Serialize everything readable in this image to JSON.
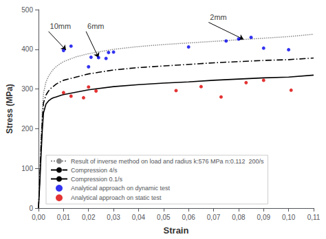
{
  "chart_data": {
    "type": "line",
    "xlabel": "Strain",
    "ylabel": "Stress (MPa)",
    "xlim": [
      0,
      0.11
    ],
    "ylim": [
      0,
      500
    ],
    "xticks": [
      {
        "value": 0.0,
        "label": "0,00"
      },
      {
        "value": 0.01,
        "label": "0,01"
      },
      {
        "value": 0.02,
        "label": "0,02"
      },
      {
        "value": 0.03,
        "label": "0,03"
      },
      {
        "value": 0.04,
        "label": "0,04"
      },
      {
        "value": 0.05,
        "label": "0,05"
      },
      {
        "value": 0.06,
        "label": "0,06"
      },
      {
        "value": 0.07,
        "label": "0,07"
      },
      {
        "value": 0.08,
        "label": "0,08"
      },
      {
        "value": 0.09,
        "label": "0,09"
      },
      {
        "value": 0.1,
        "label": "0,10"
      },
      {
        "value": 0.11,
        "label": "0,11"
      }
    ],
    "yticks": [
      0,
      100,
      200,
      300,
      400,
      500
    ],
    "grid": false,
    "legend": "lower left",
    "series": [
      {
        "name": "Result of inverse method on load and radius k:576 MPa n:0.112  200/s",
        "type": "line",
        "color": "#888888",
        "line_style": "dotted",
        "x": [
          0.0,
          0.0005,
          0.001,
          0.0015,
          0.002,
          0.003,
          0.004,
          0.005,
          0.006,
          0.007,
          0.008,
          0.009,
          0.01,
          0.015,
          0.02,
          0.03,
          0.04,
          0.05,
          0.06,
          0.07,
          0.08,
          0.085,
          0.09,
          0.1,
          0.11
        ],
        "values": [
          0,
          85,
          175,
          245,
          290,
          318,
          332,
          342,
          350,
          356,
          361,
          365,
          369,
          381,
          389,
          400,
          407,
          412,
          416,
          420,
          424,
          426,
          428,
          432,
          438
        ]
      },
      {
        "name": "Compression 4/s",
        "type": "line",
        "color": "#000000",
        "line_style": "dashdot",
        "x": [
          0.0,
          0.0005,
          0.001,
          0.0015,
          0.002,
          0.003,
          0.004,
          0.005,
          0.006,
          0.007,
          0.008,
          0.009,
          0.01,
          0.015,
          0.02,
          0.03,
          0.04,
          0.05,
          0.06,
          0.07,
          0.08,
          0.09,
          0.1,
          0.11
        ],
        "values": [
          0,
          75,
          155,
          220,
          265,
          285,
          295,
          302,
          307,
          312,
          316,
          319,
          322,
          330,
          338,
          348,
          354,
          358,
          362,
          366,
          369,
          372,
          374,
          378
        ]
      },
      {
        "name": "Compression 0.1/s",
        "type": "line",
        "color": "#000000",
        "line_style": "solid",
        "x": [
          0.0,
          0.0005,
          0.001,
          0.0015,
          0.002,
          0.003,
          0.004,
          0.005,
          0.006,
          0.007,
          0.008,
          0.009,
          0.01,
          0.015,
          0.02,
          0.03,
          0.04,
          0.05,
          0.06,
          0.07,
          0.08,
          0.09,
          0.1,
          0.11
        ],
        "values": [
          0,
          60,
          130,
          195,
          240,
          262,
          270,
          275,
          278,
          280,
          282,
          284,
          286,
          292,
          298,
          306,
          311,
          315,
          318,
          322,
          325,
          328,
          330,
          335
        ]
      },
      {
        "name": "Analytical approach on dynamic test",
        "type": "scatter",
        "color": "#0000ee",
        "marker": "circle",
        "x": [
          0.01,
          0.013,
          0.02,
          0.021,
          0.024,
          0.027,
          0.028,
          0.03,
          0.06,
          0.075,
          0.08,
          0.085,
          0.09,
          0.1
        ],
        "values": [
          397,
          408,
          356,
          380,
          379,
          377,
          392,
          393,
          406,
          421,
          426,
          430,
          403,
          399
        ]
      },
      {
        "name": "Analytical approach on static test",
        "type": "scatter",
        "color": "#dd0000",
        "marker": "circle",
        "x": [
          0.01,
          0.013,
          0.018,
          0.02,
          0.023,
          0.055,
          0.065,
          0.073,
          0.083,
          0.09,
          0.101
        ],
        "values": [
          291,
          282,
          278,
          305,
          295,
          296,
          306,
          280,
          316,
          322,
          297
        ]
      }
    ],
    "annotations": [
      {
        "text": "10mm",
        "xy": [
          0.011,
          398
        ],
        "xytext": [
          0.004,
          445
        ]
      },
      {
        "text": "6mm",
        "xy": [
          0.024,
          379
        ],
        "xytext": [
          0.019,
          445
        ]
      },
      {
        "text": "2mm",
        "xy": [
          0.082,
          425
        ],
        "xytext": [
          0.068,
          468
        ]
      }
    ]
  }
}
